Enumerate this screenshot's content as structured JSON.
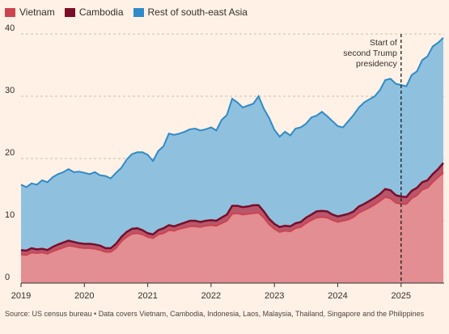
{
  "legend": {
    "items": [
      {
        "label": "Vietnam",
        "color": "#cc444f"
      },
      {
        "label": "Cambodia",
        "color": "#7a0d2a"
      },
      {
        "label": "Rest of south-east Asia",
        "color": "#2e8bc8"
      }
    ]
  },
  "source": "Source: US census bureau • Data covers Vietnam, Cambodia, Indonesia, Laos, Malaysia, Thailand, Singapore and the Philippines",
  "chart_data": {
    "type": "area",
    "stacked": false,
    "x_start": "2019-01",
    "x_interval": "month",
    "x": [
      "2019-01",
      "2019-02",
      "2019-03",
      "2019-04",
      "2019-05",
      "2019-06",
      "2019-07",
      "2019-08",
      "2019-09",
      "2019-10",
      "2019-11",
      "2019-12",
      "2020-01",
      "2020-02",
      "2020-03",
      "2020-04",
      "2020-05",
      "2020-06",
      "2020-07",
      "2020-08",
      "2020-09",
      "2020-10",
      "2020-11",
      "2020-12",
      "2021-01",
      "2021-02",
      "2021-03",
      "2021-04",
      "2021-05",
      "2021-06",
      "2021-07",
      "2021-08",
      "2021-09",
      "2021-10",
      "2021-11",
      "2021-12",
      "2022-01",
      "2022-02",
      "2022-03",
      "2022-04",
      "2022-05",
      "2022-06",
      "2022-07",
      "2022-08",
      "2022-09",
      "2022-10",
      "2022-11",
      "2022-12",
      "2023-01",
      "2023-02",
      "2023-03",
      "2023-04",
      "2023-05",
      "2023-06",
      "2023-07",
      "2023-08",
      "2023-09",
      "2023-10",
      "2023-11",
      "2023-12",
      "2024-01",
      "2024-02",
      "2024-03",
      "2024-04",
      "2024-05",
      "2024-06",
      "2024-07",
      "2024-08",
      "2024-09",
      "2024-10",
      "2024-11",
      "2024-12",
      "2025-01",
      "2025-02",
      "2025-03",
      "2025-04",
      "2025-05",
      "2025-06",
      "2025-07",
      "2025-08",
      "2025-09"
    ],
    "series": [
      {
        "name": "Rest of south-east Asia",
        "color": "#2e8bc8",
        "fill": "#8fc1de",
        "values": [
          15.8,
          15.4,
          16.0,
          15.8,
          16.5,
          16.2,
          17.0,
          17.5,
          17.8,
          18.3,
          17.8,
          17.9,
          17.7,
          17.5,
          17.8,
          17.3,
          17.2,
          16.8,
          17.7,
          18.5,
          19.8,
          20.7,
          21.0,
          21.0,
          20.6,
          19.6,
          21.2,
          22.0,
          24.0,
          23.8,
          24.0,
          24.3,
          24.7,
          24.8,
          24.5,
          24.7,
          25.0,
          24.5,
          26.2,
          27.0,
          29.6,
          29.0,
          28.2,
          28.5,
          28.8,
          30.0,
          28.0,
          26.5,
          24.6,
          23.5,
          24.3,
          23.7,
          24.8,
          25.0,
          25.6,
          26.6,
          26.9,
          27.5,
          26.8,
          26.0,
          25.2,
          25.0,
          26.0,
          27.0,
          28.2,
          29.0,
          29.5,
          30.0,
          31.0,
          32.6,
          32.8,
          32.0,
          31.8,
          31.6,
          33.4,
          34.0,
          35.8,
          36.4,
          38.0,
          38.6,
          39.4
        ]
      },
      {
        "name": "Cambodia",
        "color": "#7a0d2a",
        "fill": "#b8566c",
        "values": [
          5.3,
          5.2,
          5.6,
          5.4,
          5.5,
          5.3,
          5.8,
          6.2,
          6.5,
          6.8,
          6.6,
          6.4,
          6.3,
          6.3,
          6.2,
          6.0,
          5.6,
          5.6,
          6.3,
          7.4,
          8.2,
          8.7,
          8.8,
          8.5,
          8.0,
          7.8,
          8.5,
          8.8,
          9.3,
          9.1,
          9.4,
          9.7,
          10.0,
          10.0,
          9.8,
          10.0,
          10.1,
          10.0,
          10.5,
          11.0,
          12.4,
          12.4,
          12.2,
          12.3,
          12.5,
          12.5,
          11.5,
          10.3,
          9.5,
          9.0,
          9.2,
          9.1,
          9.6,
          9.8,
          10.5,
          11.0,
          11.5,
          11.6,
          11.5,
          11.0,
          10.7,
          10.9,
          11.1,
          11.5,
          12.3,
          12.7,
          13.2,
          13.7,
          14.3,
          15.1,
          14.9,
          14.1,
          13.9,
          13.8,
          14.8,
          15.3,
          16.2,
          16.5,
          17.5,
          18.3,
          19.3
        ]
      },
      {
        "name": "Vietnam",
        "color": "#cc444f",
        "fill": "#e28e92",
        "values": [
          4.6,
          4.5,
          4.9,
          4.8,
          4.9,
          4.7,
          5.1,
          5.4,
          5.7,
          6.0,
          5.9,
          5.7,
          5.6,
          5.6,
          5.5,
          5.3,
          5.0,
          5.0,
          5.6,
          6.7,
          7.4,
          7.9,
          8.0,
          7.8,
          7.4,
          7.2,
          7.8,
          8.0,
          8.5,
          8.4,
          8.7,
          8.9,
          9.1,
          9.1,
          9.0,
          9.2,
          9.3,
          9.2,
          9.6,
          10.0,
          11.1,
          11.2,
          11.0,
          11.1,
          11.2,
          11.3,
          10.5,
          9.4,
          8.7,
          8.2,
          8.4,
          8.3,
          8.8,
          9.0,
          9.6,
          10.1,
          10.5,
          10.6,
          10.5,
          10.1,
          9.8,
          10.0,
          10.2,
          10.6,
          11.3,
          11.7,
          12.1,
          12.6,
          13.2,
          13.8,
          13.6,
          12.9,
          12.7,
          12.7,
          13.6,
          14.1,
          15.0,
          15.3,
          16.2,
          17.0,
          17.7
        ]
      }
    ],
    "x_ticks": [
      "2019",
      "2020",
      "2021",
      "2022",
      "2023",
      "2024",
      "2025"
    ],
    "y_ticks": [
      0,
      10,
      20,
      30,
      40
    ],
    "ylim": [
      0,
      40
    ],
    "grid": true,
    "legend_position": "top-left",
    "annotation": {
      "lines": [
        "Start of",
        "second Trump",
        "presidency"
      ],
      "x": "2025-01"
    }
  }
}
